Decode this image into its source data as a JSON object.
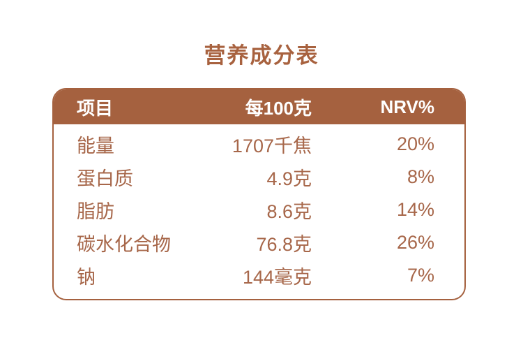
{
  "title": "营养成分表",
  "colors": {
    "header_bg": "#a5613f",
    "table_border": "#a5613f",
    "title_text": "#a8623f",
    "body_text": "#a7674a",
    "header_text": "#ffffff",
    "page_bg": "#ffffff"
  },
  "table": {
    "headers": [
      "项目",
      "每100克",
      "NRV%"
    ],
    "rows": [
      {
        "item": "能量",
        "per100g": "1707千焦",
        "nrv": "20%"
      },
      {
        "item": "蛋白质",
        "per100g": "4.9克",
        "nrv": "8%"
      },
      {
        "item": "脂肪",
        "per100g": "8.6克",
        "nrv": "14%"
      },
      {
        "item": "碳水化合物",
        "per100g": "76.8克",
        "nrv": "26%"
      },
      {
        "item": "钠",
        "per100g": "144毫克",
        "nrv": "7%"
      }
    ]
  }
}
